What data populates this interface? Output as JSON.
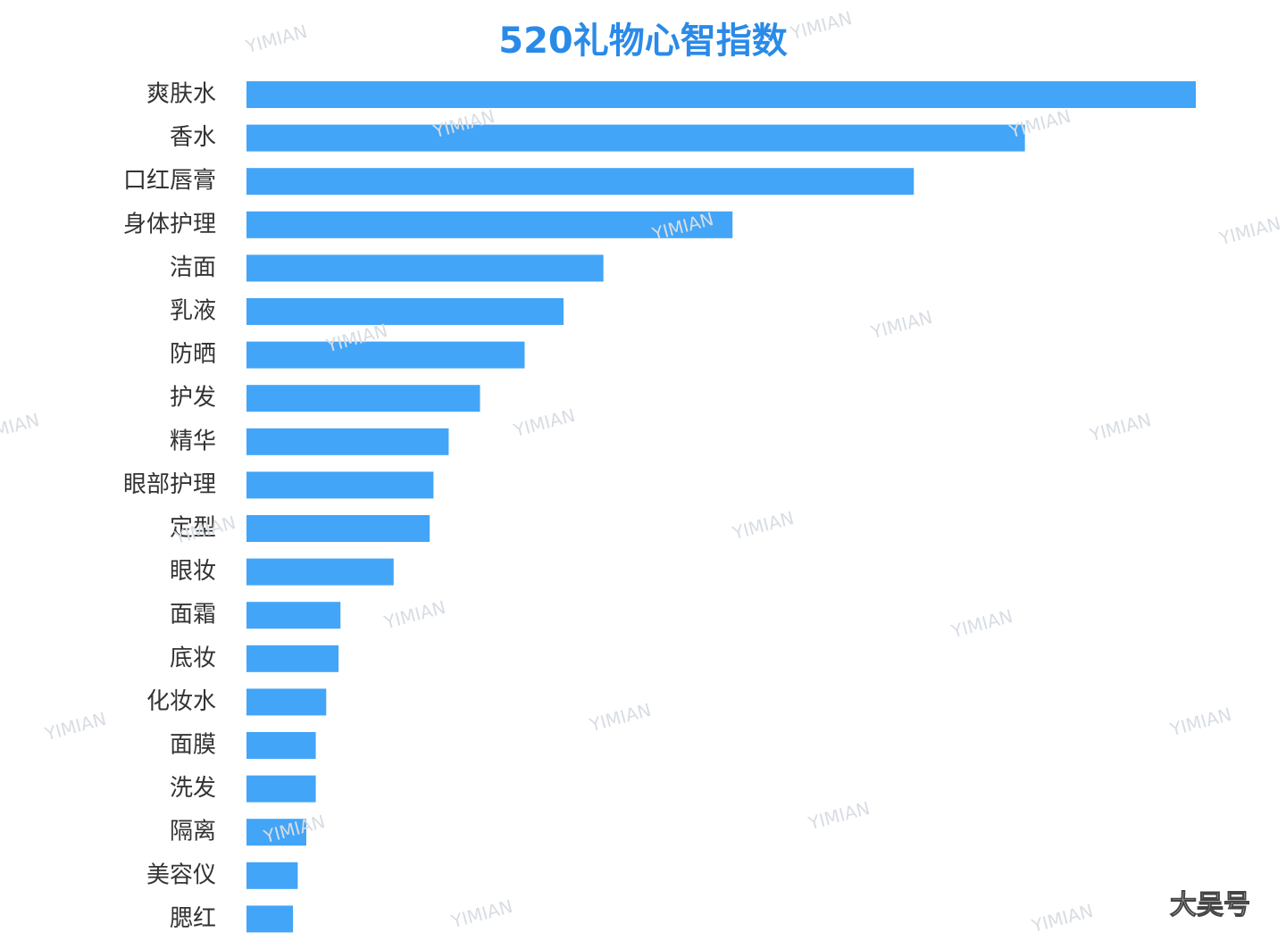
{
  "chart_data": {
    "type": "bar",
    "orientation": "horizontal",
    "title": "520礼物心智指数",
    "categories": [
      "爽肤水",
      "香水",
      "口红唇膏",
      "身体护理",
      "洁面",
      "乳液",
      "防晒",
      "护发",
      "精华",
      "眼部护理",
      "定型",
      "眼妆",
      "面霜",
      "底妆",
      "化妆水",
      "面膜",
      "洗发",
      "隔离",
      "美容仪",
      "腮红"
    ],
    "values": [
      100,
      82.0,
      70.3,
      51.2,
      37.6,
      33.4,
      29.3,
      24.6,
      21.3,
      19.7,
      19.3,
      15.5,
      9.9,
      9.7,
      8.4,
      7.3,
      7.3,
      6.3,
      5.4,
      4.9
    ],
    "color": "#42a5f8",
    "xlim": [
      0,
      100
    ],
    "grid": false,
    "watermark": "YIMIAN",
    "source_mark": "大吴号"
  }
}
